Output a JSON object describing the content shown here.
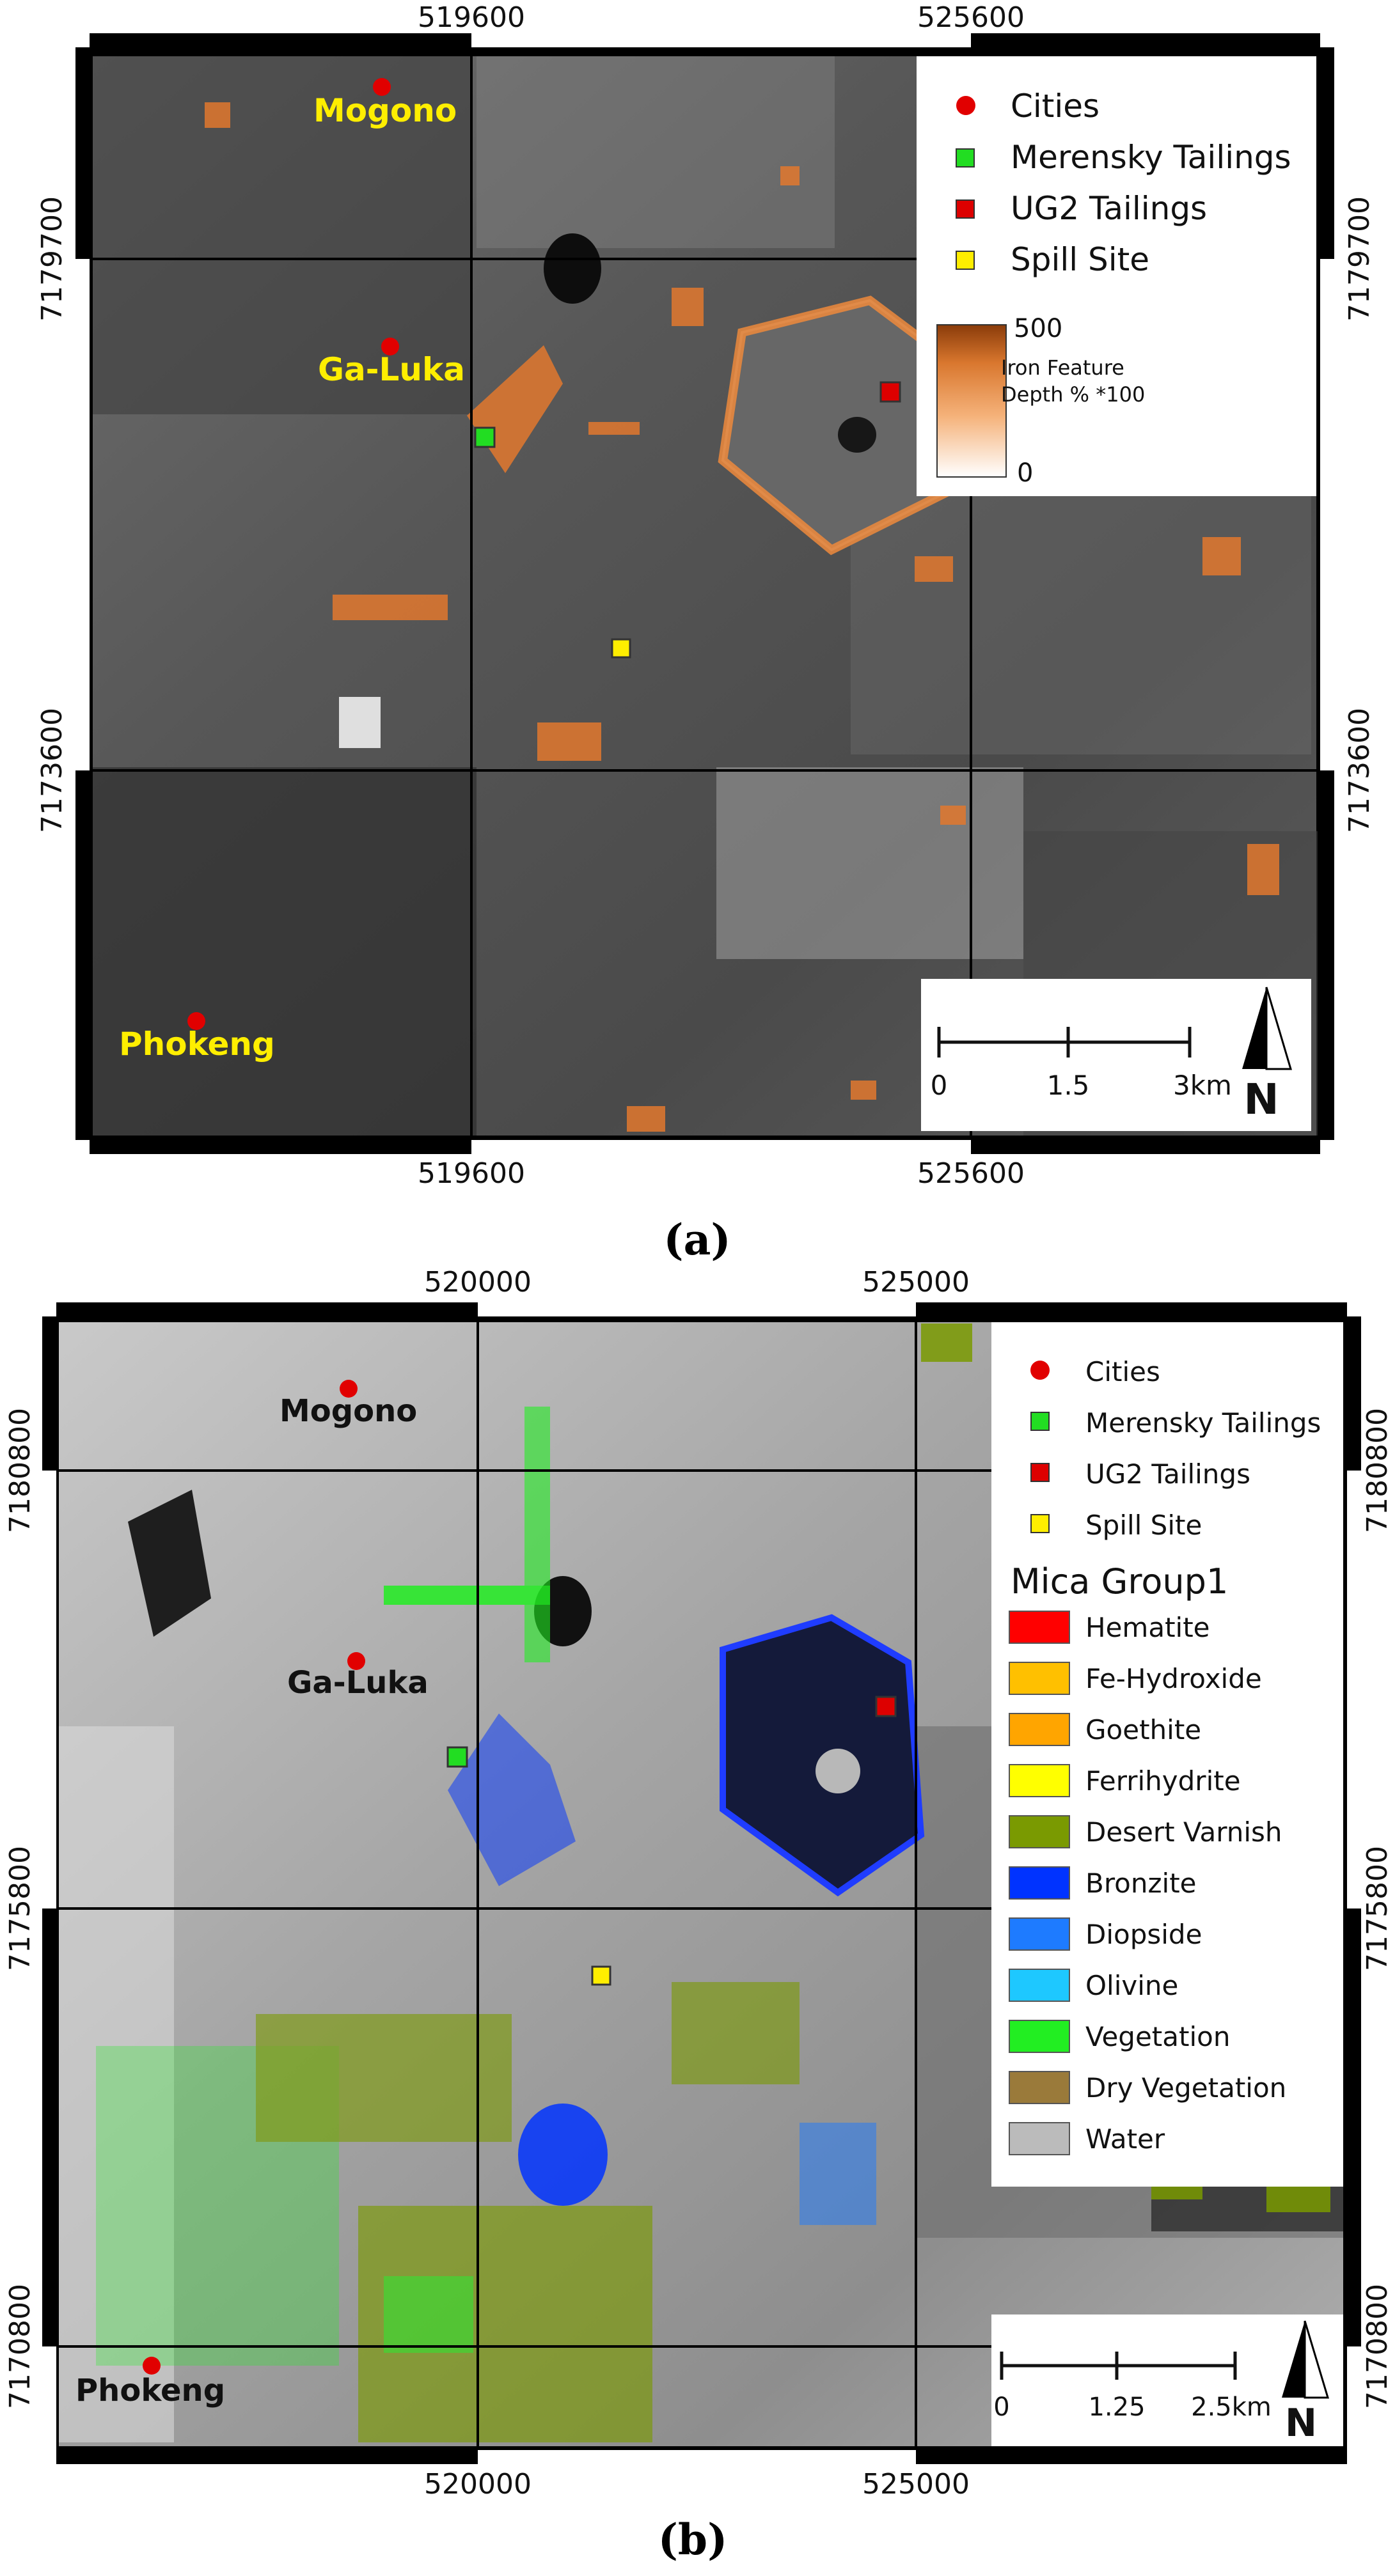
{
  "panel_a": {
    "caption": "(a)",
    "x_ticks": [
      "519600",
      "525600"
    ],
    "y_ticks": [
      "7179700",
      "7173600"
    ],
    "cities": [
      "Mogono",
      "Ga-Luka",
      "Phokeng"
    ],
    "legend": {
      "items": [
        "Cities",
        "Merensky Tailings",
        "UG2 Tailings",
        "Spill Site"
      ],
      "colorbar_title_line1": "Iron Feature",
      "colorbar_title_line2": "Depth % *100",
      "colorbar_max": "500",
      "colorbar_min": "0"
    },
    "scalebar": {
      "labels": [
        "0",
        "1.5",
        "3km"
      ],
      "north": "N"
    }
  },
  "panel_b": {
    "caption": "(b)",
    "x_ticks": [
      "520000",
      "525000"
    ],
    "y_ticks": [
      "7180800",
      "7175800",
      "7170800"
    ],
    "cities": [
      "Mogono",
      "Ga-Luka",
      "Phokeng"
    ],
    "legend": {
      "items": [
        "Cities",
        "Merensky Tailings",
        "UG2 Tailings",
        "Spill Site"
      ],
      "group_title": "Mica Group1",
      "classes": [
        {
          "label": "Hematite",
          "color": "#ff0000"
        },
        {
          "label": "Fe-Hydroxide",
          "color": "#ffc000"
        },
        {
          "label": "Goethite",
          "color": "#ffa500"
        },
        {
          "label": "Ferrihydrite",
          "color": "#ffff00"
        },
        {
          "label": "Desert Varnish",
          "color": "#7a9a01"
        },
        {
          "label": "Bronzite",
          "color": "#0033ff"
        },
        {
          "label": "Diopside",
          "color": "#1e7bff"
        },
        {
          "label": "Olivine",
          "color": "#1ec8ff"
        },
        {
          "label": "Vegetation",
          "color": "#22ee22"
        },
        {
          "label": "Dry Vegetation",
          "color": "#9a7a3a"
        },
        {
          "label": "Water",
          "color": "#bbbbbb"
        }
      ]
    },
    "scalebar": {
      "labels": [
        "0",
        "1.25",
        "2.5km"
      ],
      "north": "N"
    }
  },
  "colors": {
    "city": "#e10000",
    "merensky": "#22dd22",
    "ug2": "#dd0000",
    "spill": "#ffee00",
    "city_label_a": "#ffee00",
    "city_label_b": "#111111"
  }
}
